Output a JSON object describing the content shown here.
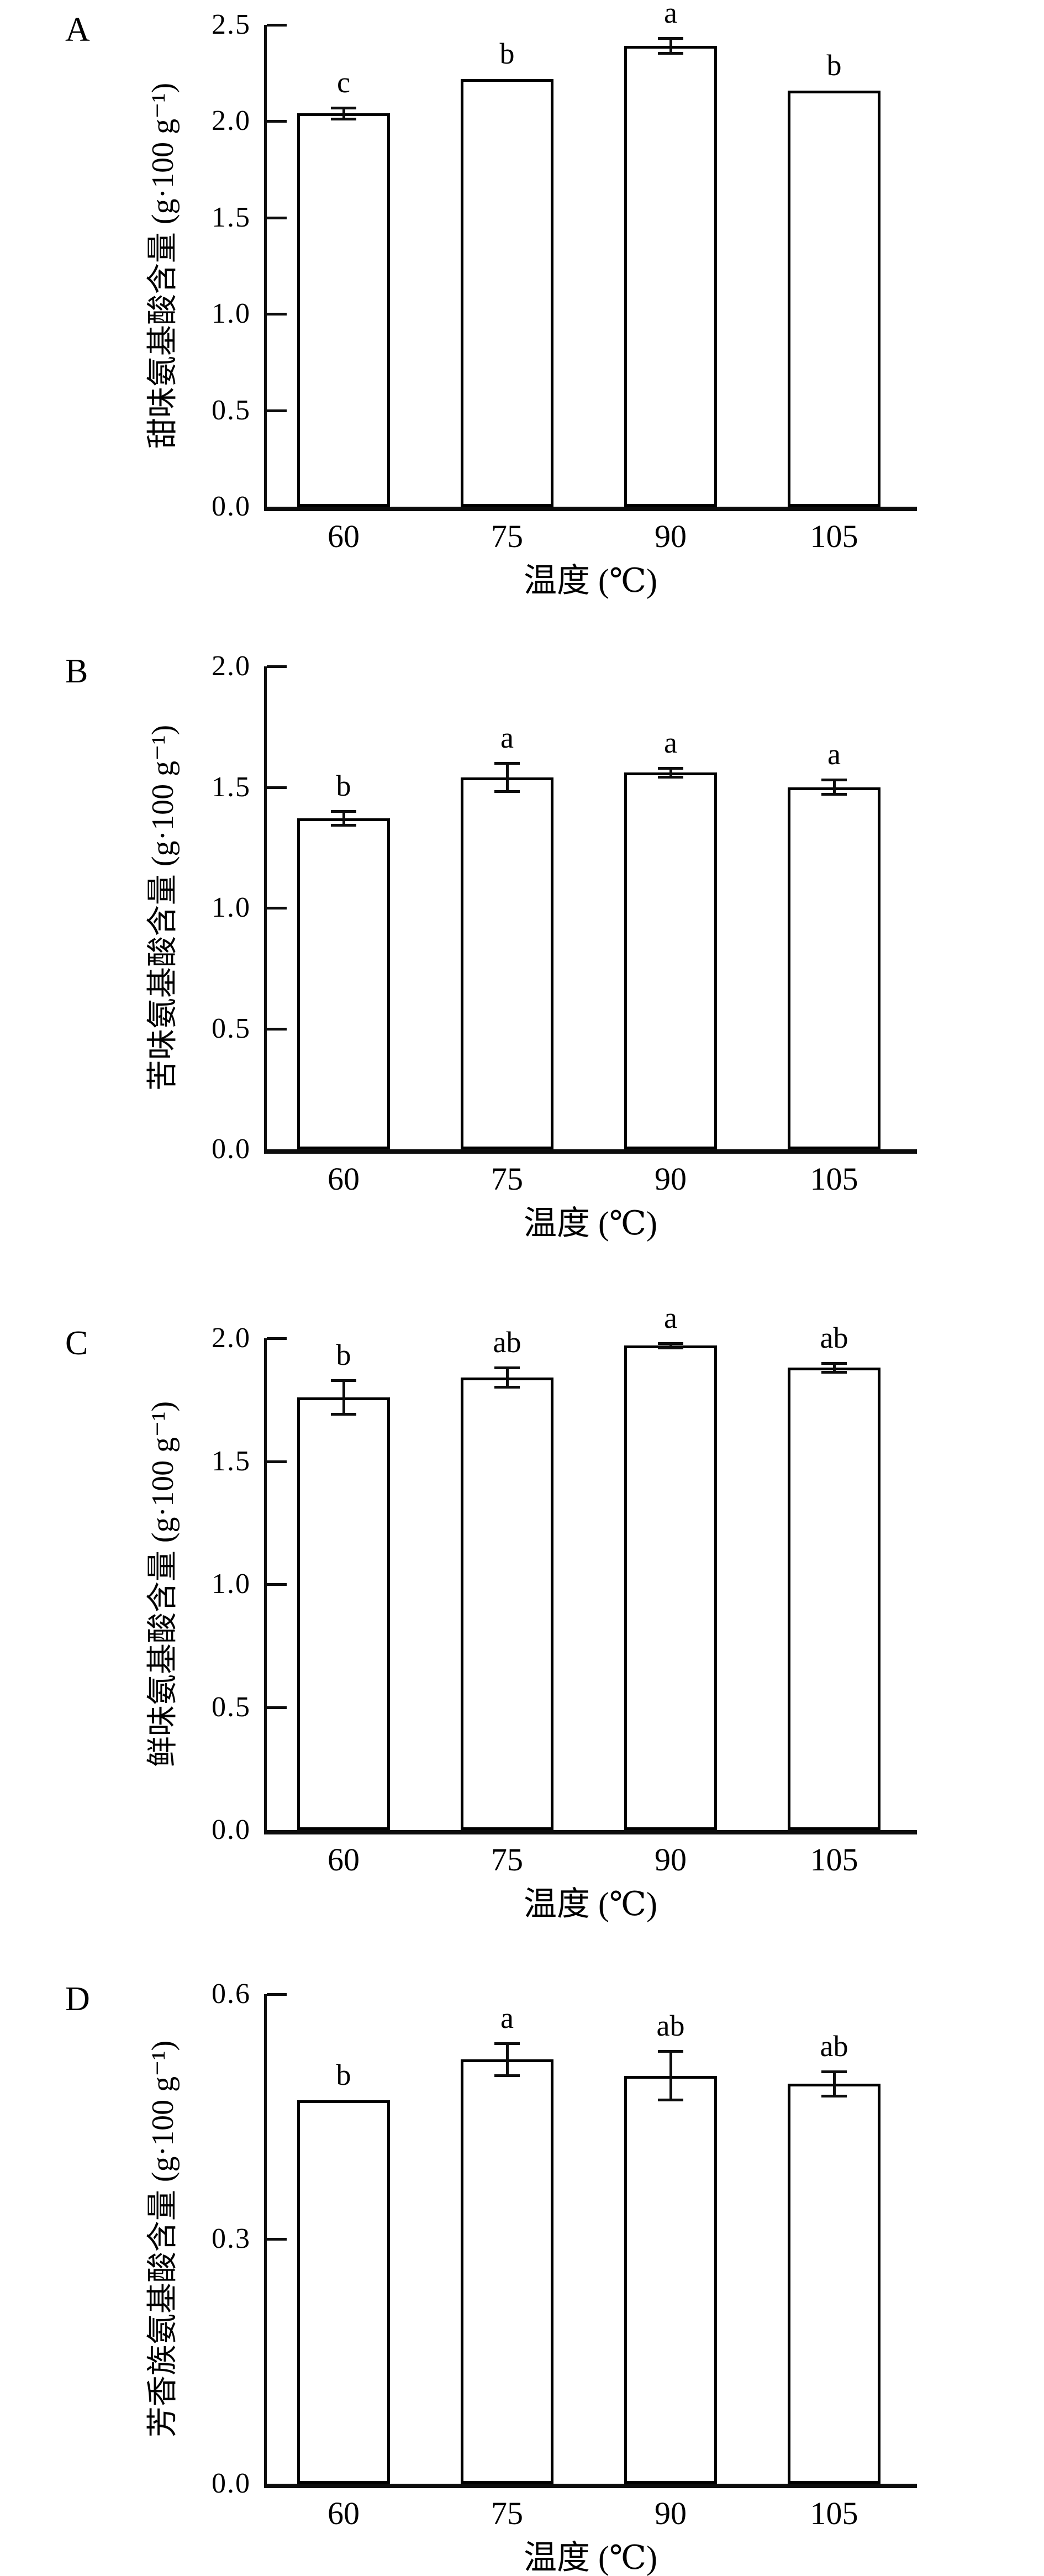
{
  "figure": {
    "background": "#ffffff",
    "ink_color": "#000000",
    "x_axis_title": "温度 (℃)",
    "x_categories": [
      "60",
      "75",
      "90",
      "105"
    ]
  },
  "chart_data": [
    {
      "type": "bar",
      "panel_letter": "A",
      "categories": [
        "60",
        "75",
        "90",
        "105"
      ],
      "values": [
        2.04,
        2.22,
        2.39,
        2.16
      ],
      "errors": [
        0.03,
        0,
        0.04,
        0
      ],
      "sig_letters": [
        "c",
        "b",
        "a",
        "b"
      ],
      "xlabel": "温度 (℃)",
      "ylabel": "甜味氨基酸含量 (g·100 g⁻¹)",
      "ylim": [
        0,
        2.5
      ],
      "yticks": [
        0,
        0.5,
        1.0,
        1.5,
        2.0,
        2.5
      ],
      "ytick_labels": [
        "0.0",
        "0.5",
        "1.0",
        "1.5",
        "2.0",
        "2.5"
      ],
      "grid": false,
      "legend": "none",
      "bar_fill": "#ffffff",
      "bar_border": "#000000"
    },
    {
      "type": "bar",
      "panel_letter": "B",
      "categories": [
        "60",
        "75",
        "90",
        "105"
      ],
      "values": [
        1.37,
        1.54,
        1.56,
        1.5
      ],
      "errors": [
        0.03,
        0.06,
        0.02,
        0.03
      ],
      "sig_letters": [
        "b",
        "a",
        "a",
        "a"
      ],
      "xlabel": "温度 (℃)",
      "ylabel": "苦味氨基酸含量 (g·100 g⁻¹)",
      "ylim": [
        0,
        2.0
      ],
      "yticks": [
        0,
        0.5,
        1.0,
        1.5,
        2.0
      ],
      "ytick_labels": [
        "0.0",
        "0.5",
        "1.0",
        "1.5",
        "2.0"
      ],
      "grid": false,
      "legend": "none",
      "bar_fill": "#ffffff",
      "bar_border": "#000000"
    },
    {
      "type": "bar",
      "panel_letter": "C",
      "categories": [
        "60",
        "75",
        "90",
        "105"
      ],
      "values": [
        1.76,
        1.84,
        1.97,
        1.88
      ],
      "errors": [
        0.07,
        0.04,
        0.01,
        0.02
      ],
      "sig_letters": [
        "b",
        "ab",
        "a",
        "ab"
      ],
      "xlabel": "温度 (℃)",
      "ylabel": "鲜味氨基酸含量 (g·100 g⁻¹)",
      "ylim": [
        0,
        2.0
      ],
      "yticks": [
        0,
        0.5,
        1.0,
        1.5,
        2.0
      ],
      "ytick_labels": [
        "0.0",
        "0.5",
        "1.0",
        "1.5",
        "2.0"
      ],
      "grid": false,
      "legend": "none",
      "bar_fill": "#ffffff",
      "bar_border": "#000000"
    },
    {
      "type": "bar",
      "panel_letter": "D",
      "categories": [
        "60",
        "75",
        "90",
        "105"
      ],
      "values": [
        0.47,
        0.52,
        0.5,
        0.49
      ],
      "errors": [
        0,
        0.02,
        0.03,
        0.015
      ],
      "sig_letters": [
        "b",
        "a",
        "ab",
        "ab"
      ],
      "xlabel": "温度 (℃)",
      "ylabel": "芳香族氨基酸含量 (g·100 g⁻¹)",
      "ylim": [
        0,
        0.6
      ],
      "yticks": [
        0,
        0.3,
        0.6
      ],
      "ytick_labels": [
        "0.0",
        "0.3",
        "0.6"
      ],
      "grid": false,
      "legend": "none",
      "bar_fill": "#ffffff",
      "bar_border": "#000000"
    }
  ]
}
